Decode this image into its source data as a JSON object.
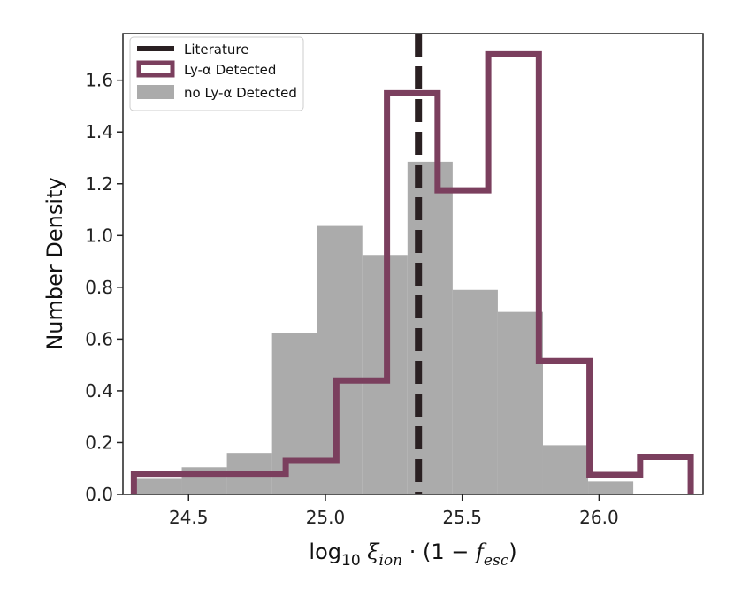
{
  "chart_data": {
    "type": "histogram",
    "title": "",
    "xlabel": "log10 ξion · (1 − fesc)",
    "xlabel_parts": {
      "log": "log",
      "log_sub": "10",
      "xi": "ξ",
      "xi_sub": "ion",
      "rest": " · (1 − ",
      "f": "f",
      "f_sub": "esc",
      "close": ")"
    },
    "ylabel": "Number Density",
    "xlim": [
      24.26,
      26.38
    ],
    "ylim": [
      0.0,
      1.78
    ],
    "xticks": [
      24.5,
      25.0,
      25.5,
      26.0
    ],
    "xtick_labels": [
      "24.5",
      "25.0",
      "25.5",
      "26.0"
    ],
    "yticks": [
      0.0,
      0.2,
      0.4,
      0.6,
      0.8,
      1.0,
      1.2,
      1.4,
      1.6
    ],
    "ytick_labels": [
      "0.0",
      "0.2",
      "0.4",
      "0.6",
      "0.8",
      "1.0",
      "1.2",
      "1.4",
      "1.6"
    ],
    "series": [
      {
        "name": "no Ly-α Detected",
        "kind": "filled",
        "color": "#ababab",
        "bin_edges": [
          24.31,
          24.475,
          24.64,
          24.805,
          24.97,
          25.135,
          25.3,
          25.465,
          25.63,
          25.795,
          25.96,
          26.125
        ],
        "values": [
          0.06,
          0.105,
          0.16,
          0.625,
          1.04,
          0.925,
          1.285,
          0.79,
          0.705,
          0.19,
          0.05
        ]
      },
      {
        "name": "Ly-α Detected",
        "kind": "step",
        "color": "#7b3f5e",
        "bin_edges": [
          24.3,
          24.485,
          24.67,
          24.855,
          25.04,
          25.225,
          25.41,
          25.595,
          25.78,
          25.965,
          26.15,
          26.335
        ],
        "values": [
          0.08,
          0.08,
          0.08,
          0.13,
          0.44,
          1.55,
          1.175,
          1.7,
          0.515,
          0.075,
          0.145,
          0.0
        ]
      }
    ],
    "reference_line": {
      "name": "Literature",
      "x": 25.34,
      "color": "#2a2022",
      "style": "dashed"
    },
    "legend": {
      "position": "top-left",
      "entries": [
        {
          "label": "Literature",
          "kind": "dashed-line"
        },
        {
          "label": "Ly-α Detected",
          "kind": "outlined-box"
        },
        {
          "label": "no Ly-α Detected",
          "kind": "filled-box"
        }
      ]
    }
  }
}
